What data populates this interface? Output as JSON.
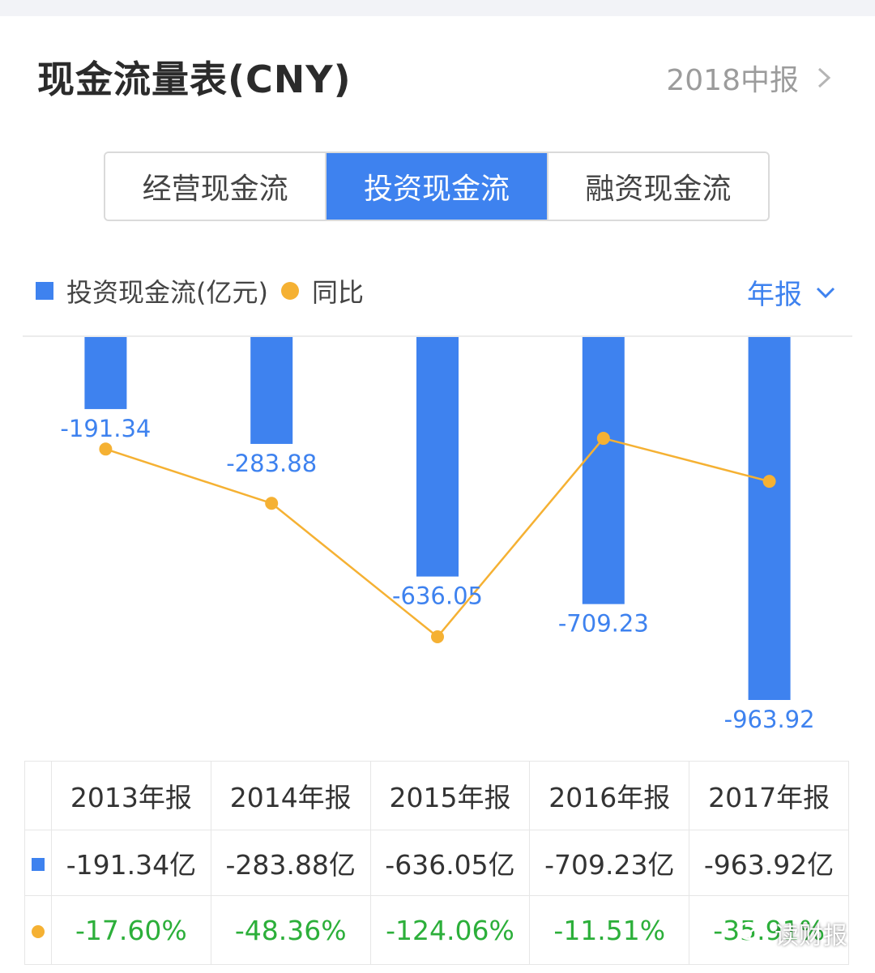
{
  "header": {
    "title": "现金流量表(CNY)",
    "period_label": "2018中报"
  },
  "tabs": [
    {
      "label": "经营现金流",
      "active": false
    },
    {
      "label": "投资现金流",
      "active": true
    },
    {
      "label": "融资现金流",
      "active": false
    }
  ],
  "legend": {
    "bar_label": "投资现金流(亿元)",
    "dot_label": "同比"
  },
  "mode_select": {
    "label": "年报"
  },
  "colors": {
    "bar": "#3e82ef",
    "line": "#f5b133",
    "positive_text": "#2caf3a"
  },
  "chart_data": {
    "type": "bar",
    "categories": [
      "2013年报",
      "2014年报",
      "2015年报",
      "2016年报",
      "2017年报"
    ],
    "series": [
      {
        "name": "投资现金流(亿元)",
        "type": "bar",
        "values": [
          -191.34,
          -283.88,
          -636.05,
          -709.23,
          -963.92
        ]
      },
      {
        "name": "同比",
        "type": "line",
        "values": [
          -17.6,
          -48.36,
          -124.06,
          -11.51,
          -35.91
        ]
      }
    ],
    "bar_labels": [
      "-191.34",
      "-283.88",
      "-636.05",
      "-709.23",
      "-963.92"
    ]
  },
  "table": {
    "headers": [
      "2013年报",
      "2014年报",
      "2015年报",
      "2016年报",
      "2017年报"
    ],
    "values": [
      "-191.34亿",
      "-283.88亿",
      "-636.05亿",
      "-709.23亿",
      "-963.92亿"
    ],
    "yoy": [
      "-17.60%",
      "-48.36%",
      "-124.06%",
      "-11.51%",
      "-35.91%"
    ]
  },
  "watermark": {
    "text": "读财报",
    "icon": "wechat-icon"
  }
}
